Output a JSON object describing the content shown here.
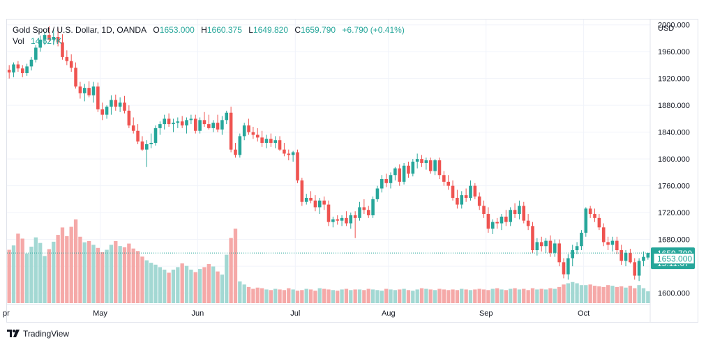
{
  "legend": {
    "symbol": "Gold Spot / U.S. Dollar, 1D, OANDA",
    "o_label": "O",
    "o_value": "1653.000",
    "h_label": "H",
    "h_value": "1660.375",
    "l_label": "L",
    "l_value": "1649.820",
    "c_label": "C",
    "c_value": "1659.790",
    "change": "+6.790 (+0.41%)",
    "vol_label": "Vol",
    "vol_value": "14.627K"
  },
  "branding": {
    "name": "TradingView"
  },
  "colors": {
    "up": "#26a69a",
    "down": "#ef5350",
    "vol_up": "#a3d8d3",
    "vol_down": "#f5a9a8",
    "grid": "#f0f3fa"
  },
  "chart_data": {
    "type": "candlestick",
    "instrument": "Gold Spot / U.S. Dollar",
    "interval": "1D",
    "source": "OANDA",
    "currency_label": "USD",
    "y_ticks": [
      "2000.000",
      "1960.000",
      "1920.000",
      "1880.000",
      "1840.000",
      "1800.000",
      "1760.000",
      "1720.000",
      "1680.000",
      "1640.000",
      "1600.000"
    ],
    "ylim": [
      1584,
      2008
    ],
    "x_ticks": [
      {
        "label": "pr",
        "index": 0
      },
      {
        "label": "May",
        "index": 21
      },
      {
        "label": "Jun",
        "index": 43
      },
      {
        "label": "Jul",
        "index": 65
      },
      {
        "label": "Aug",
        "index": 86
      },
      {
        "label": "Sep",
        "index": 108
      },
      {
        "label": "Oct",
        "index": 130
      }
    ],
    "last_price": {
      "price_label": "1659.790",
      "countdown": "15:11:07",
      "value": 1659.79
    },
    "open_price": {
      "price_label": "1653.000",
      "value": 1653.0
    },
    "candles": [
      [
        1933,
        1940,
        1920,
        1929,
        8.6
      ],
      [
        1929,
        1944,
        1922,
        1941,
        9.3
      ],
      [
        1941,
        1946,
        1930,
        1935,
        11.2
      ],
      [
        1935,
        1940,
        1922,
        1928,
        10.4
      ],
      [
        1928,
        1942,
        1924,
        1938,
        8.0
      ],
      [
        1938,
        1952,
        1932,
        1948,
        9.1
      ],
      [
        1948,
        1970,
        1944,
        1966,
        10.6
      ],
      [
        1966,
        1984,
        1960,
        1978,
        9.7
      ],
      [
        1978,
        1990,
        1970,
        1985,
        7.6
      ],
      [
        1985,
        1998,
        1975,
        1978,
        8.7
      ],
      [
        1978,
        1992,
        1970,
        1982,
        9.9
      ],
      [
        1982,
        1995,
        1968,
        1974,
        11.0
      ],
      [
        1974,
        1986,
        1948,
        1952,
        12.2
      ],
      [
        1952,
        1962,
        1940,
        1946,
        10.8
      ],
      [
        1946,
        1956,
        1930,
        1936,
        12.3
      ],
      [
        1936,
        1944,
        1905,
        1908,
        13.5
      ],
      [
        1908,
        1915,
        1890,
        1898,
        10.7
      ],
      [
        1898,
        1912,
        1886,
        1906,
        9.8
      ],
      [
        1906,
        1916,
        1892,
        1895,
        10.0
      ],
      [
        1895,
        1915,
        1884,
        1908,
        9.4
      ],
      [
        1908,
        1914,
        1870,
        1874,
        8.9
      ],
      [
        1874,
        1884,
        1858,
        1866,
        8.2
      ],
      [
        1866,
        1880,
        1860,
        1878,
        8.6
      ],
      [
        1878,
        1895,
        1866,
        1888,
        9.4
      ],
      [
        1888,
        1896,
        1872,
        1878,
        10.0
      ],
      [
        1878,
        1892,
        1870,
        1884,
        9.2
      ],
      [
        1884,
        1894,
        1868,
        1872,
        9.0
      ],
      [
        1872,
        1880,
        1846,
        1850,
        9.6
      ],
      [
        1850,
        1862,
        1838,
        1842,
        8.8
      ],
      [
        1842,
        1852,
        1822,
        1826,
        8.4
      ],
      [
        1826,
        1834,
        1812,
        1814,
        7.5
      ],
      [
        1814,
        1828,
        1788,
        1822,
        6.9
      ],
      [
        1822,
        1838,
        1816,
        1824,
        6.5
      ],
      [
        1824,
        1850,
        1820,
        1846,
        6.2
      ],
      [
        1846,
        1856,
        1836,
        1852,
        5.8
      ],
      [
        1852,
        1866,
        1844,
        1860,
        5.4
      ],
      [
        1860,
        1868,
        1848,
        1852,
        4.9
      ],
      [
        1852,
        1860,
        1840,
        1854,
        5.4
      ],
      [
        1854,
        1862,
        1846,
        1856,
        5.8
      ],
      [
        1856,
        1864,
        1846,
        1850,
        6.4
      ],
      [
        1850,
        1862,
        1838,
        1858,
        6.0
      ],
      [
        1858,
        1866,
        1852,
        1860,
        5.4
      ],
      [
        1860,
        1866,
        1838,
        1842,
        5.0
      ],
      [
        1842,
        1862,
        1838,
        1858,
        5.5
      ],
      [
        1858,
        1870,
        1848,
        1852,
        5.8
      ],
      [
        1852,
        1866,
        1844,
        1846,
        6.3
      ],
      [
        1846,
        1858,
        1840,
        1854,
        5.9
      ],
      [
        1854,
        1866,
        1840,
        1844,
        5.1
      ],
      [
        1844,
        1864,
        1836,
        1858,
        4.6
      ],
      [
        1858,
        1872,
        1852,
        1869,
        7.8
      ],
      [
        1869,
        1878,
        1810,
        1814,
        10.5
      ],
      [
        1814,
        1824,
        1802,
        1806,
        12.0
      ],
      [
        1806,
        1838,
        1802,
        1834,
        3.5
      ],
      [
        1834,
        1854,
        1828,
        1850,
        3.0
      ],
      [
        1850,
        1860,
        1836,
        1840,
        2.6
      ],
      [
        1840,
        1848,
        1830,
        1836,
        2.3
      ],
      [
        1836,
        1846,
        1826,
        1832,
        2.5
      ],
      [
        1832,
        1842,
        1818,
        1824,
        2.4
      ],
      [
        1824,
        1836,
        1816,
        1830,
        2.2
      ],
      [
        1830,
        1838,
        1818,
        1824,
        2.1
      ],
      [
        1824,
        1834,
        1816,
        1828,
        2.3
      ],
      [
        1828,
        1834,
        1812,
        1814,
        2.2
      ],
      [
        1814,
        1824,
        1804,
        1808,
        2.1
      ],
      [
        1808,
        1814,
        1798,
        1806,
        2.4
      ],
      [
        1806,
        1812,
        1796,
        1810,
        2.2
      ],
      [
        1810,
        1814,
        1764,
        1768,
        2.0
      ],
      [
        1768,
        1772,
        1730,
        1736,
        2.1
      ],
      [
        1736,
        1748,
        1732,
        1742,
        2.3
      ],
      [
        1742,
        1752,
        1734,
        1738,
        2.2
      ],
      [
        1738,
        1746,
        1722,
        1728,
        2.0
      ],
      [
        1728,
        1742,
        1718,
        1738,
        2.4
      ],
      [
        1738,
        1744,
        1724,
        1732,
        2.3
      ],
      [
        1732,
        1738,
        1700,
        1706,
        2.2
      ],
      [
        1706,
        1714,
        1698,
        1710,
        2.1
      ],
      [
        1710,
        1716,
        1702,
        1708,
        2.0
      ],
      [
        1708,
        1716,
        1700,
        1712,
        2.2
      ],
      [
        1712,
        1722,
        1700,
        1704,
        2.3
      ],
      [
        1704,
        1720,
        1696,
        1716,
        2.1
      ],
      [
        1716,
        1722,
        1682,
        1712,
        2.2
      ],
      [
        1712,
        1736,
        1708,
        1728,
        2.2
      ],
      [
        1728,
        1740,
        1718,
        1724,
        2.1
      ],
      [
        1724,
        1730,
        1712,
        1716,
        2.3
      ],
      [
        1716,
        1744,
        1712,
        1740,
        2.2
      ],
      [
        1740,
        1760,
        1736,
        1756,
        2.1
      ],
      [
        1756,
        1776,
        1750,
        1770,
        2.0
      ],
      [
        1770,
        1778,
        1758,
        1764,
        2.3
      ],
      [
        1764,
        1780,
        1756,
        1776,
        2.2
      ],
      [
        1776,
        1788,
        1768,
        1786,
        2.1
      ],
      [
        1786,
        1792,
        1760,
        1766,
        2.2
      ],
      [
        1766,
        1794,
        1762,
        1790,
        2.3
      ],
      [
        1790,
        1796,
        1772,
        1778,
        2.1
      ],
      [
        1778,
        1800,
        1774,
        1796,
        2.0
      ],
      [
        1796,
        1808,
        1786,
        1800,
        2.2
      ],
      [
        1800,
        1806,
        1788,
        1794,
        2.4
      ],
      [
        1794,
        1802,
        1784,
        1798,
        2.3
      ],
      [
        1798,
        1802,
        1778,
        1782,
        2.2
      ],
      [
        1782,
        1800,
        1776,
        1798,
        2.1
      ],
      [
        1798,
        1802,
        1770,
        1776,
        2.3
      ],
      [
        1776,
        1782,
        1760,
        1766,
        2.2
      ],
      [
        1766,
        1776,
        1754,
        1760,
        2.1
      ],
      [
        1760,
        1768,
        1738,
        1742,
        2.2
      ],
      [
        1742,
        1754,
        1726,
        1732,
        2.1
      ],
      [
        1732,
        1752,
        1726,
        1746,
        2.3
      ],
      [
        1746,
        1756,
        1736,
        1742,
        2.2
      ],
      [
        1742,
        1768,
        1738,
        1760,
        2.1
      ],
      [
        1760,
        1764,
        1740,
        1744,
        2.2
      ],
      [
        1744,
        1750,
        1724,
        1730,
        2.3
      ],
      [
        1730,
        1738,
        1712,
        1718,
        2.2
      ],
      [
        1718,
        1728,
        1690,
        1696,
        2.1
      ],
      [
        1696,
        1710,
        1688,
        1706,
        2.3
      ],
      [
        1706,
        1712,
        1696,
        1704,
        2.4
      ],
      [
        1704,
        1718,
        1694,
        1714,
        2.2
      ],
      [
        1714,
        1724,
        1700,
        1706,
        2.1
      ],
      [
        1706,
        1728,
        1700,
        1724,
        2.3
      ],
      [
        1724,
        1734,
        1712,
        1718,
        2.4
      ],
      [
        1718,
        1738,
        1710,
        1730,
        2.2
      ],
      [
        1730,
        1736,
        1704,
        1708,
        2.3
      ],
      [
        1708,
        1718,
        1694,
        1700,
        2.1
      ],
      [
        1700,
        1706,
        1660,
        1664,
        2.4
      ],
      [
        1664,
        1682,
        1656,
        1676,
        2.2
      ],
      [
        1676,
        1684,
        1662,
        1670,
        2.3
      ],
      [
        1670,
        1682,
        1660,
        1678,
        2.2
      ],
      [
        1678,
        1686,
        1654,
        1660,
        2.4
      ],
      [
        1660,
        1680,
        1654,
        1674,
        2.3
      ],
      [
        1674,
        1680,
        1640,
        1646,
        2.6
      ],
      [
        1646,
        1652,
        1622,
        1628,
        3.0
      ],
      [
        1628,
        1658,
        1620,
        1652,
        3.2
      ],
      [
        1652,
        1672,
        1640,
        1664,
        3.4
      ],
      [
        1664,
        1676,
        1658,
        1670,
        3.2
      ],
      [
        1670,
        1694,
        1664,
        1690,
        2.9
      ],
      [
        1690,
        1728,
        1684,
        1726,
        2.9
      ],
      [
        1726,
        1730,
        1712,
        1718,
        3.0
      ],
      [
        1718,
        1726,
        1706,
        1712,
        2.8
      ],
      [
        1712,
        1718,
        1694,
        1698,
        2.7
      ],
      [
        1698,
        1704,
        1670,
        1676,
        2.6
      ],
      [
        1676,
        1684,
        1664,
        1672,
        2.9
      ],
      [
        1672,
        1684,
        1662,
        1678,
        2.8
      ],
      [
        1678,
        1684,
        1658,
        1664,
        2.6
      ],
      [
        1664,
        1672,
        1642,
        1648,
        2.7
      ],
      [
        1648,
        1664,
        1640,
        1660,
        2.5
      ],
      [
        1660,
        1666,
        1644,
        1646,
        2.8
      ],
      [
        1646,
        1652,
        1620,
        1626,
        2.4
      ],
      [
        1626,
        1652,
        1618,
        1648,
        2.9
      ],
      [
        1648,
        1662,
        1640,
        1654,
        2.4
      ],
      [
        1653,
        1660.375,
        1649.82,
        1659.79,
        1.9
      ]
    ]
  }
}
